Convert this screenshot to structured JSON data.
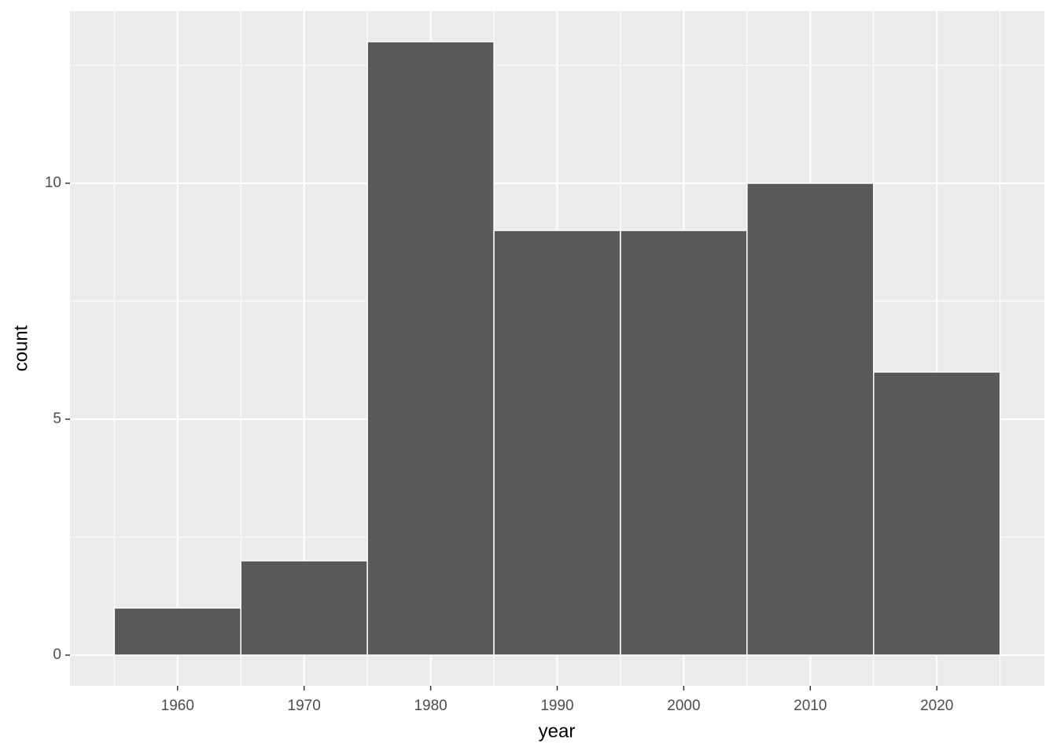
{
  "chart_data": {
    "type": "histogram",
    "x_label": "year",
    "y_label": "count",
    "bins": [
      1955,
      1965,
      1975,
      1985,
      1995,
      2005,
      2015,
      2025
    ],
    "values": [
      1,
      2,
      13,
      9,
      9,
      10,
      6
    ],
    "color": "#595959",
    "xlim": [
      1951.5,
      2028.5
    ],
    "xticks": [
      1960,
      1970,
      1980,
      1990,
      2000,
      2010,
      2020
    ],
    "ylim": [
      -0.65,
      13.65
    ],
    "yticks": [
      0,
      5,
      10
    ],
    "grid": true
  }
}
